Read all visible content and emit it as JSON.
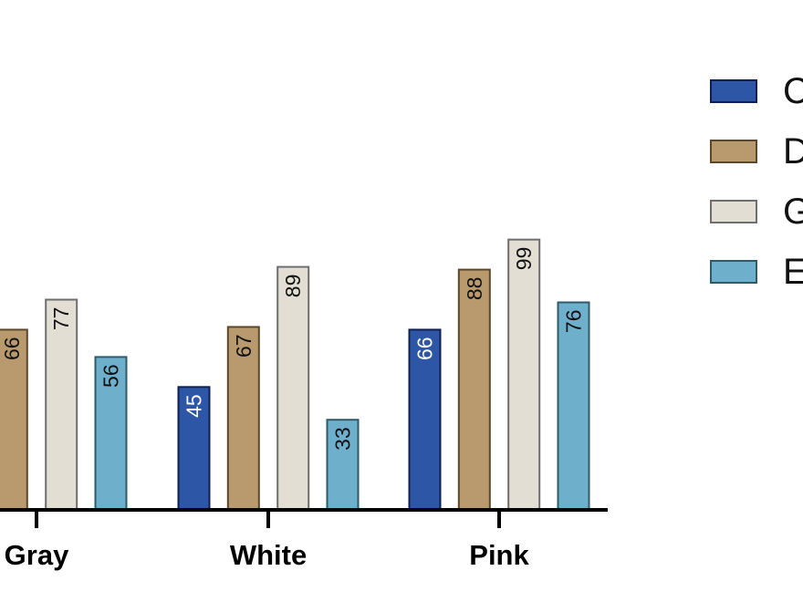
{
  "chart_data": {
    "type": "bar",
    "categories": [
      "Gray",
      "White",
      "Pink"
    ],
    "series": [
      {
        "name": "C",
        "values": [
          null,
          45,
          66
        ],
        "color": "#2e56a6",
        "stroke": "#0f2150",
        "label_color": "#ffffff"
      },
      {
        "name": "D",
        "values": [
          66,
          67,
          88
        ],
        "color": "#b89a6e",
        "stroke": "#5c4828",
        "label_color": "#111111"
      },
      {
        "name": "G",
        "values": [
          77,
          89,
          99
        ],
        "color": "#e3ded3",
        "stroke": "#6e6e6e",
        "label_color": "#111111"
      },
      {
        "name": "E",
        "values": [
          56,
          33,
          76
        ],
        "color": "#6eafcc",
        "stroke": "#2f5a6a",
        "label_color": "#111111"
      }
    ],
    "data_labels": [
      [
        null,
        "45",
        "66"
      ],
      [
        "66",
        "67",
        "88"
      ],
      [
        "77",
        "89",
        "99"
      ],
      [
        "56",
        "33",
        "76"
      ]
    ],
    "ylim": [
      0,
      150
    ],
    "title": "",
    "xlabel": "",
    "ylabel": "",
    "legend_position": "right",
    "grid": false
  }
}
